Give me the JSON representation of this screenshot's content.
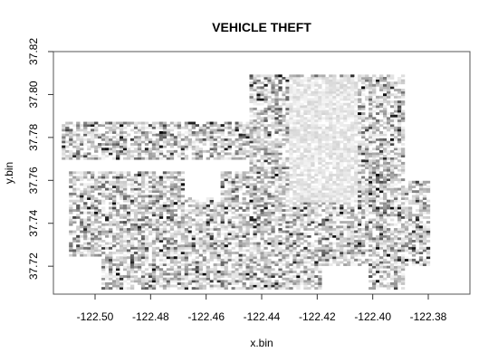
{
  "chart_data": {
    "type": "heatmap",
    "title": "VEHICLE THEFT",
    "xlabel": "x.bin",
    "ylabel": "y.bin",
    "xlim": [
      -122.515,
      -122.365
    ],
    "ylim": [
      37.707,
      37.82
    ],
    "x_ticks": [
      "-122.50",
      "-122.48",
      "-122.46",
      "-122.44",
      "-122.42",
      "-122.40",
      "-122.38"
    ],
    "y_ticks": [
      "37.72",
      "37.74",
      "37.76",
      "37.78",
      "37.80",
      "37.82"
    ],
    "bin_size_x": 0.0013,
    "bin_size_y": 0.0011,
    "colors": {
      "low": "#ffffff",
      "high": "#000000"
    },
    "regions": [
      {
        "x": [
          -122.5115,
          -122.445
        ],
        "y": [
          37.765,
          37.787
        ]
      },
      {
        "x": [
          -122.51,
          -122.445
        ],
        "y": [
          37.709,
          37.77
        ]
      },
      {
        "x": [
          -122.445,
          -122.389
        ],
        "y": [
          37.709,
          37.809
        ]
      },
      {
        "x": [
          -122.389,
          -122.379
        ],
        "y": [
          37.72,
          37.76
        ]
      }
    ],
    "empty_areas": [
      {
        "x": [
          -122.5115,
          -122.445
        ],
        "y": [
          37.764,
          37.77
        ]
      },
      {
        "x": [
          -122.468,
          -122.455
        ],
        "y": [
          37.752,
          37.764
        ]
      },
      {
        "x": [
          -122.418,
          -122.402
        ],
        "y": [
          37.709,
          37.72
        ]
      },
      {
        "x": [
          -122.512,
          -122.498
        ],
        "y": [
          37.709,
          37.725
        ]
      }
    ],
    "light_area": {
      "x": [
        -122.43,
        -122.405
      ],
      "y": [
        37.75,
        37.808
      ]
    }
  }
}
